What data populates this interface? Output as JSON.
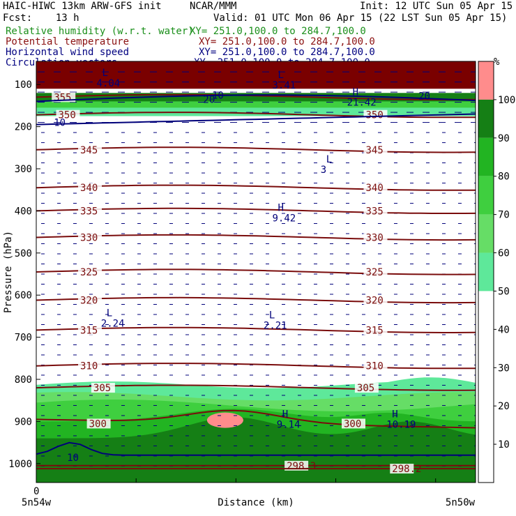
{
  "header": {
    "model": "HAIC-HIWC 13km ARW-GFS init",
    "org": "NCAR/MMM",
    "init": "Init: 12 UTC Sun 05 Apr 15",
    "fcst": "Fcst:    13 h",
    "valid": "Valid: 01 UTC Mon 06 Apr 15 (22 LST Sun 05 Apr 15)",
    "fields": [
      {
        "name": "Relative humidity (w.r.t. water)",
        "xy": "XY= 251.0,100.0 to 284.7,100.0",
        "color": "#1a8f1a"
      },
      {
        "name": "Potential temperature",
        "xy": "XY= 251.0,100.0 to 284.7,100.0",
        "color": "#8b1010"
      },
      {
        "name": "Horizontal wind speed",
        "xy": "XY= 251.0,100.0 to 284.7,100.0",
        "color": "#000080"
      },
      {
        "name": "Circulation vectors",
        "xy": "XY= 251.0,100.0 to 284.7,100.0",
        "color": "#000080"
      }
    ]
  },
  "colors": {
    "theta": "#7a0c0c",
    "wind": "#00007a",
    "rh_50": "#5ee89a",
    "rh_60": "#66dd66",
    "rh_70": "#3fcf3f",
    "rh_80": "#22b422",
    "rh_90": "#157f15",
    "rh_100": "#ff8c8c",
    "top_fill": "#7a0000"
  },
  "chart_data": {
    "type": "cross-section",
    "xlabel": "Distance (km)",
    "ylabel": "Pressure (hPa)",
    "x_start_tick": "0",
    "x_endpoints": [
      "5n54w",
      "5n50w"
    ],
    "ylim": [
      1045,
      45
    ],
    "y_ticks": [
      100,
      200,
      300,
      400,
      500,
      600,
      700,
      800,
      900,
      1000
    ],
    "colorbar": {
      "unit": "%",
      "ticks": [
        10,
        20,
        30,
        40,
        50,
        60,
        70,
        80,
        90,
        100
      ]
    },
    "theta_contours": [
      {
        "label": "305",
        "p": 820,
        "labels_at": [
          0.13,
          0.73
        ]
      },
      {
        "label": "310",
        "p": 768,
        "labels_at": [
          0.1,
          0.75
        ]
      },
      {
        "label": "315",
        "p": 683,
        "labels_at": [
          0.1,
          0.75
        ]
      },
      {
        "label": "320",
        "p": 612,
        "labels_at": [
          0.1,
          0.75
        ]
      },
      {
        "label": "325",
        "p": 545,
        "labels_at": [
          0.1,
          0.75
        ]
      },
      {
        "label": "330",
        "p": 463,
        "labels_at": [
          0.1,
          0.75
        ]
      },
      {
        "label": "335",
        "p": 400,
        "labels_at": [
          0.1,
          0.75
        ]
      },
      {
        "label": "340",
        "p": 345,
        "labels_at": [
          0.1,
          0.75
        ]
      },
      {
        "label": "345",
        "p": 255,
        "labels_at": [
          0.1,
          0.75
        ]
      },
      {
        "label": "350",
        "p": 172,
        "labels_at": [
          0.05,
          0.75
        ]
      },
      {
        "label": "355",
        "p": 130,
        "labels_at": [
          0.04
        ]
      },
      {
        "label": "300",
        "p": 905,
        "labels_at": [
          0.12,
          0.7
        ]
      },
      {
        "label": "298.3",
        "p": 1005,
        "labels_at": [
          0.57
        ]
      },
      {
        "label": "298.2",
        "p": 1012,
        "labels_at": [
          0.81
        ]
      }
    ],
    "wind_labels": [
      {
        "label": "10",
        "p": 190,
        "x": 0.04
      },
      {
        "label": "20",
        "p": 135,
        "x": 0.38
      },
      {
        "label": "10",
        "p": 125,
        "x": 0.4
      },
      {
        "label": "20",
        "p": 127,
        "x": 0.87
      },
      {
        "label": "10",
        "p": 985,
        "x": 0.07
      }
    ],
    "extrema": [
      {
        "type": "H",
        "value": "9.42",
        "p": 400,
        "x": 0.55
      },
      {
        "type": "L",
        "value": "3",
        "p": 285,
        "x": 0.66
      },
      {
        "type": "L",
        "value": "2.24",
        "p": 650,
        "x": 0.16
      },
      {
        "type": "L",
        "value": "2.21",
        "p": 655,
        "x": 0.53
      },
      {
        "type": "H",
        "value": "9.14",
        "p": 890,
        "x": 0.56
      },
      {
        "type": "H",
        "value": "10.19",
        "p": 890,
        "x": 0.81
      },
      {
        "type": "H",
        "value": "21.42",
        "p": 125,
        "x": 0.72
      },
      {
        "type": "L",
        "value": "3.41",
        "p": 85,
        "x": 0.55
      },
      {
        "type": "L",
        "value": "4.04",
        "p": 80,
        "x": 0.15
      }
    ]
  }
}
